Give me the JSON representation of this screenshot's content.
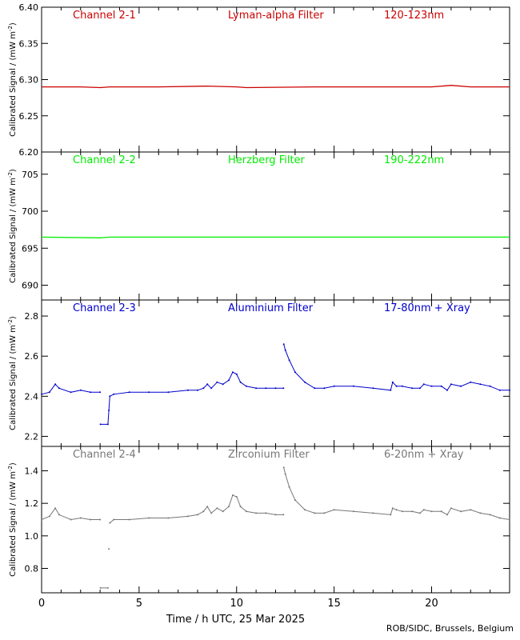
{
  "chart_data": [
    {
      "type": "line",
      "channel": "Channel 2-1",
      "filter": "Lyman-alpha Filter",
      "band": "120-123nm",
      "color": "#cc0000",
      "ylabel": "Calibrated Signal / (mW m-2)",
      "ylim": [
        6.2,
        6.4
      ],
      "yticks": [
        "6.20",
        "6.25",
        "6.30",
        "6.35",
        "6.40"
      ],
      "series": [
        {
          "x": [
            0,
            2,
            3,
            3.5,
            6,
            8.5,
            10,
            10.5,
            14,
            18,
            20,
            21,
            22,
            24
          ],
          "y": [
            6.29,
            6.29,
            6.289,
            6.29,
            6.29,
            6.291,
            6.29,
            6.289,
            6.29,
            6.29,
            6.29,
            6.292,
            6.29,
            6.29
          ]
        }
      ]
    },
    {
      "type": "line",
      "channel": "Channel 2-2",
      "filter": "Herzberg Filter",
      "band": "190-222nm",
      "color": "#00ee00",
      "ylabel": "Calibrated Signal / (mW m-2)",
      "ylim": [
        688,
        708
      ],
      "yticks": [
        "690",
        "695",
        "700",
        "705"
      ],
      "series": [
        {
          "x": [
            0,
            3,
            3.5,
            8,
            12,
            18,
            24
          ],
          "y": [
            696.5,
            696.4,
            696.5,
            696.5,
            696.5,
            696.5,
            696.5
          ]
        }
      ]
    },
    {
      "type": "scatter",
      "channel": "Channel 2-3",
      "filter": "Aluminium Filter",
      "band": "17-80nm + Xray",
      "color": "#0000cc",
      "ylabel": "Calibrated Signal / (mW m-2)",
      "ylim": [
        2.15,
        2.88
      ],
      "yticks": [
        "2.2",
        "2.4",
        "2.6",
        "2.8"
      ],
      "series": [
        {
          "x": [
            0,
            0.4,
            0.7,
            0.9,
            1.5,
            2.0,
            2.5,
            3.0,
            3.02,
            3.4,
            3.45,
            3.5,
            3.7,
            4.5,
            5.5,
            6.5,
            7.5,
            8.0,
            8.3,
            8.5,
            8.7,
            9.0,
            9.3,
            9.6,
            9.8,
            10.0,
            10.2,
            10.5,
            11.0,
            11.5,
            12.0,
            12.4,
            12.42,
            12.5,
            12.7,
            13.0,
            13.5,
            14.0,
            14.5,
            15.0,
            16.0,
            17.0,
            17.9,
            18.0,
            18.2,
            18.5,
            19.0,
            19.4,
            19.6,
            20.0,
            20.5,
            20.8,
            21.0,
            21.5,
            22.0,
            22.5,
            23.0,
            23.5,
            24.0
          ],
          "y": [
            2.41,
            2.42,
            2.46,
            2.44,
            2.42,
            2.43,
            2.42,
            2.42,
            2.26,
            2.26,
            2.33,
            2.4,
            2.41,
            2.42,
            2.42,
            2.42,
            2.43,
            2.43,
            2.44,
            2.46,
            2.44,
            2.47,
            2.46,
            2.48,
            2.52,
            2.51,
            2.47,
            2.45,
            2.44,
            2.44,
            2.44,
            2.44,
            2.66,
            2.63,
            2.58,
            2.52,
            2.47,
            2.44,
            2.44,
            2.45,
            2.45,
            2.44,
            2.43,
            2.47,
            2.45,
            2.45,
            2.44,
            2.44,
            2.46,
            2.45,
            2.45,
            2.43,
            2.46,
            2.45,
            2.47,
            2.46,
            2.45,
            2.43,
            2.43
          ]
        }
      ]
    },
    {
      "type": "scatter",
      "channel": "Channel 2-4",
      "filter": "Zirconium Filter",
      "band": "6-20nm + Xray",
      "color": "#777777",
      "ylabel": "Calibrated Signal / (mW m-2)",
      "ylim": [
        0.65,
        1.55
      ],
      "yticks": [
        "0.8",
        "1.0",
        "1.2",
        "1.4"
      ],
      "xlabel": "Time / h UTC, 25 Mar 2025",
      "xlim": [
        0,
        24
      ],
      "xticks": [
        "0",
        "5",
        "10",
        "15",
        "20"
      ],
      "series": [
        {
          "x": [
            0,
            0.4,
            0.7,
            0.9,
            1.5,
            2.0,
            2.5,
            3.0,
            3.02,
            3.4,
            3.45,
            3.5,
            3.7,
            4.5,
            5.5,
            6.5,
            7.5,
            8.0,
            8.3,
            8.5,
            8.7,
            9.0,
            9.3,
            9.6,
            9.8,
            10.0,
            10.2,
            10.5,
            11.0,
            11.5,
            12.0,
            12.4,
            12.42,
            12.5,
            12.7,
            13.0,
            13.5,
            14.0,
            14.5,
            15.0,
            16.0,
            17.0,
            17.9,
            18.0,
            18.2,
            18.5,
            19.0,
            19.4,
            19.6,
            20.0,
            20.5,
            20.8,
            21.0,
            21.5,
            22.0,
            22.5,
            23.0,
            23.5,
            24.0
          ],
          "y": [
            1.1,
            1.12,
            1.17,
            1.13,
            1.1,
            1.11,
            1.1,
            1.1,
            0.68,
            0.68,
            0.92,
            1.08,
            1.1,
            1.1,
            1.11,
            1.11,
            1.12,
            1.13,
            1.15,
            1.18,
            1.14,
            1.17,
            1.15,
            1.18,
            1.25,
            1.24,
            1.18,
            1.15,
            1.14,
            1.14,
            1.13,
            1.13,
            1.42,
            1.38,
            1.3,
            1.22,
            1.16,
            1.14,
            1.14,
            1.16,
            1.15,
            1.14,
            1.13,
            1.17,
            1.16,
            1.15,
            1.15,
            1.14,
            1.16,
            1.15,
            1.15,
            1.13,
            1.17,
            1.15,
            1.16,
            1.14,
            1.13,
            1.11,
            1.1
          ]
        }
      ]
    }
  ],
  "footer": {
    "credit": "ROB/SIDC, Brussels, Belgium"
  }
}
